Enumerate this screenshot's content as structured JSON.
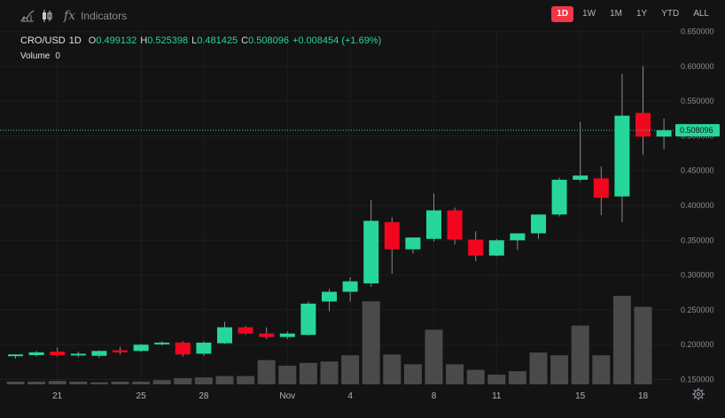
{
  "toolbar": {
    "indicators_label": "Indicators",
    "fx_glyph": "fx",
    "icons": [
      "bar-chart-icon",
      "candlestick-icon",
      "function-icon"
    ],
    "ranges": [
      {
        "label": "1D",
        "active": true
      },
      {
        "label": "1W",
        "active": false
      },
      {
        "label": "1M",
        "active": false
      },
      {
        "label": "1Y",
        "active": false
      },
      {
        "label": "YTD",
        "active": false
      },
      {
        "label": "ALL",
        "active": false
      }
    ]
  },
  "legend": {
    "symbol": "CRO/USD",
    "timeframe": "1D",
    "o_label": "O",
    "o_value": "0.499132",
    "h_label": "H",
    "h_value": "0.525398",
    "l_label": "L",
    "l_value": "0.481425",
    "c_label": "C",
    "c_value": "0.508096",
    "change": "+0.008454 (+1.69%)",
    "volume_label": "Volume",
    "volume_value": "0"
  },
  "colors": {
    "background": "#131313",
    "up": "#26d69a",
    "down": "#f2061f",
    "volume": "#4a4a4a",
    "wick": "#8a8a8a",
    "grid": "#1e1e1e",
    "last_price_line": "#26d69a"
  },
  "icons": {
    "settings": "gear-icon"
  },
  "chart_data": {
    "type": "candlestick",
    "symbol": "CRO/USD",
    "interval": "1D",
    "last_price": "0.508096",
    "y_tick_labels": [
      "0.650000",
      "0.600000",
      "0.550000",
      "0.500000",
      "0.450000",
      "0.400000",
      "0.350000",
      "0.300000",
      "0.250000",
      "0.200000",
      "0.150000"
    ],
    "y_ticks": [
      0.65,
      0.6,
      0.55,
      0.5,
      0.45,
      0.4,
      0.35,
      0.3,
      0.25,
      0.2,
      0.15
    ],
    "ylim": [
      0.143,
      0.652
    ],
    "x_tick_labels": [
      {
        "label": "21",
        "index": 2
      },
      {
        "label": "25",
        "index": 6
      },
      {
        "label": "28",
        "index": 9
      },
      {
        "label": "Nov",
        "index": 13
      },
      {
        "label": "4",
        "index": 16
      },
      {
        "label": "8",
        "index": 20
      },
      {
        "label": "11",
        "index": 23
      },
      {
        "label": "15",
        "index": 27
      },
      {
        "label": "18",
        "index": 30
      }
    ],
    "grid": true,
    "candles": [
      {
        "o": 0.184,
        "h": 0.186,
        "l": 0.18,
        "c": 0.186,
        "v": 0.004
      },
      {
        "o": 0.185,
        "h": 0.191,
        "l": 0.183,
        "c": 0.189,
        "v": 0.004
      },
      {
        "o": 0.19,
        "h": 0.196,
        "l": 0.183,
        "c": 0.185,
        "v": 0.005
      },
      {
        "o": 0.186,
        "h": 0.19,
        "l": 0.182,
        "c": 0.187,
        "v": 0.004
      },
      {
        "o": 0.184,
        "h": 0.192,
        "l": 0.181,
        "c": 0.191,
        "v": 0.003
      },
      {
        "o": 0.192,
        "h": 0.197,
        "l": 0.186,
        "c": 0.189,
        "v": 0.004
      },
      {
        "o": 0.191,
        "h": 0.201,
        "l": 0.189,
        "c": 0.2,
        "v": 0.004
      },
      {
        "o": 0.201,
        "h": 0.205,
        "l": 0.199,
        "c": 0.203,
        "v": 0.006
      },
      {
        "o": 0.203,
        "h": 0.205,
        "l": 0.183,
        "c": 0.186,
        "v": 0.009
      },
      {
        "o": 0.187,
        "h": 0.205,
        "l": 0.184,
        "c": 0.203,
        "v": 0.01
      },
      {
        "o": 0.202,
        "h": 0.233,
        "l": 0.201,
        "c": 0.225,
        "v": 0.012
      },
      {
        "o": 0.225,
        "h": 0.227,
        "l": 0.214,
        "c": 0.216,
        "v": 0.012
      },
      {
        "o": 0.216,
        "h": 0.225,
        "l": 0.208,
        "c": 0.211,
        "v": 0.035
      },
      {
        "o": 0.211,
        "h": 0.219,
        "l": 0.208,
        "c": 0.216,
        "v": 0.027
      },
      {
        "o": 0.214,
        "h": 0.262,
        "l": 0.213,
        "c": 0.259,
        "v": 0.031
      },
      {
        "o": 0.262,
        "h": 0.28,
        "l": 0.248,
        "c": 0.276,
        "v": 0.033
      },
      {
        "o": 0.276,
        "h": 0.297,
        "l": 0.262,
        "c": 0.291,
        "v": 0.042
      },
      {
        "o": 0.288,
        "h": 0.408,
        "l": 0.283,
        "c": 0.378,
        "v": 0.12
      },
      {
        "o": 0.376,
        "h": 0.383,
        "l": 0.302,
        "c": 0.337,
        "v": 0.043
      },
      {
        "o": 0.337,
        "h": 0.354,
        "l": 0.331,
        "c": 0.354,
        "v": 0.029
      },
      {
        "o": 0.352,
        "h": 0.417,
        "l": 0.348,
        "c": 0.393,
        "v": 0.079
      },
      {
        "o": 0.393,
        "h": 0.397,
        "l": 0.344,
        "c": 0.351,
        "v": 0.029
      },
      {
        "o": 0.351,
        "h": 0.363,
        "l": 0.32,
        "c": 0.328,
        "v": 0.021
      },
      {
        "o": 0.328,
        "h": 0.352,
        "l": 0.327,
        "c": 0.35,
        "v": 0.014
      },
      {
        "o": 0.35,
        "h": 0.36,
        "l": 0.336,
        "c": 0.36,
        "v": 0.019
      },
      {
        "o": 0.36,
        "h": 0.387,
        "l": 0.352,
        "c": 0.387,
        "v": 0.046
      },
      {
        "o": 0.387,
        "h": 0.44,
        "l": 0.384,
        "c": 0.437,
        "v": 0.042
      },
      {
        "o": 0.437,
        "h": 0.52,
        "l": 0.434,
        "c": 0.443,
        "v": 0.085
      },
      {
        "o": 0.439,
        "h": 0.456,
        "l": 0.386,
        "c": 0.411,
        "v": 0.042
      },
      {
        "o": 0.413,
        "h": 0.589,
        "l": 0.376,
        "c": 0.529,
        "v": 0.128
      },
      {
        "o": 0.533,
        "h": 0.6,
        "l": 0.473,
        "c": 0.499,
        "v": 0.112
      },
      {
        "o": 0.499,
        "h": 0.525,
        "l": 0.481,
        "c": 0.508,
        "v": 0.0
      }
    ]
  }
}
